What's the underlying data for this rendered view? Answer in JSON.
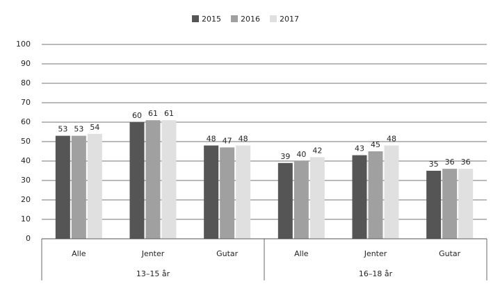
{
  "chart_data": {
    "type": "bar",
    "categories": [
      "Alle",
      "Jenter",
      "Gutar",
      "Alle",
      "Jenter",
      "Gutar"
    ],
    "groups": [
      "13–15 år",
      "16–18 år"
    ],
    "series": [
      {
        "name": "2015",
        "color": "#555555",
        "values": [
          53,
          60,
          48,
          39,
          43,
          35
        ]
      },
      {
        "name": "2016",
        "color": "#a0a0a0",
        "values": [
          53,
          61,
          47,
          40,
          45,
          36
        ]
      },
      {
        "name": "2017",
        "color": "#e0e0e0",
        "values": [
          54,
          61,
          48,
          42,
          48,
          36
        ]
      }
    ],
    "ylim": [
      0,
      100
    ],
    "yticks": [
      0,
      10,
      20,
      30,
      40,
      50,
      60,
      70,
      80,
      90,
      100
    ],
    "grid": true,
    "legend": "top"
  }
}
